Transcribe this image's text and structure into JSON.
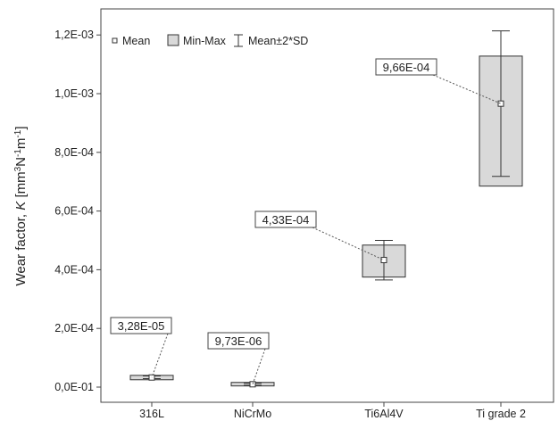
{
  "chart_data": {
    "type": "box",
    "title": "",
    "xlabel": "",
    "ylabel": {
      "main": "Wear factor, ",
      "italic": "K",
      "unit_open": " [mm",
      "sup1": "3",
      "n": "N",
      "sup2": "-1",
      "m": "m",
      "sup3": "-1",
      "unit_close": "]"
    },
    "ylim": [
      0,
      0.00122
    ],
    "yticks": [
      0,
      0.0002,
      0.0004,
      0.0006,
      0.0008,
      0.001,
      0.0012
    ],
    "ytick_labels": [
      "0,0E-01",
      "2,0E-04",
      "4,0E-04",
      "6,0E-04",
      "8,0E-04",
      "1,0E-03",
      "1,2E-03"
    ],
    "categories": [
      "316L",
      "NiCrMo",
      "Ti6Al4V",
      "Ti grade 2"
    ],
    "series": [
      {
        "category": "316L",
        "mean": 3.28e-05,
        "min": 2.5e-05,
        "max": 4e-05,
        "sd_low": 2.9e-05,
        "sd_high": 3.8e-05,
        "label": "3,28E-05"
      },
      {
        "category": "NiCrMo",
        "mean": 9.73e-06,
        "min": 4e-06,
        "max": 1.6e-05,
        "sd_low": 6e-06,
        "sd_high": 1.3e-05,
        "label": "9,73E-06"
      },
      {
        "category": "Ti6Al4V",
        "mean": 0.000433,
        "min": 0.000375,
        "max": 0.000484,
        "sd_low": 0.000365,
        "sd_high": 0.0005,
        "label": "4,33E-04"
      },
      {
        "category": "Ti grade 2",
        "mean": 0.000966,
        "min": 0.000685,
        "max": 0.001128,
        "sd_low": 0.000718,
        "sd_high": 0.001214,
        "label": "9,66E-04"
      }
    ],
    "legend": {
      "position": "top-left",
      "items": [
        {
          "name": "Mean",
          "marker": "square"
        },
        {
          "name": "Min-Max",
          "marker": "box"
        },
        {
          "name": "Mean±2*SD",
          "marker": "whisker"
        }
      ]
    },
    "grid": false,
    "colors": {
      "box_fill": "#d9d9d9",
      "line": "#333333",
      "leader": "#555555"
    }
  }
}
